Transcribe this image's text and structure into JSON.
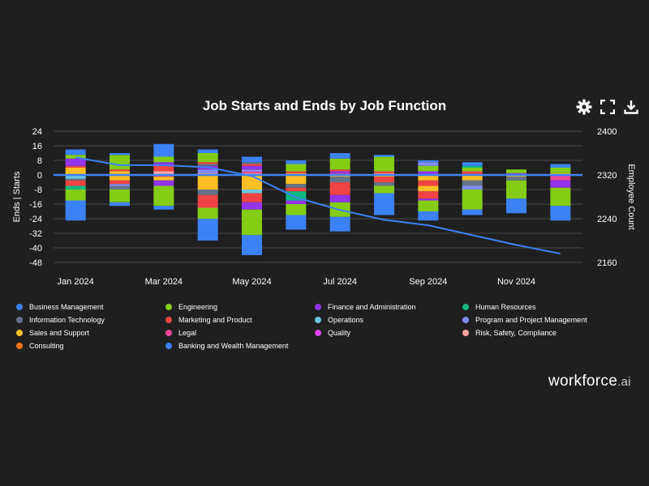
{
  "title": "Job Starts and Ends by Job Function",
  "toolbar": {
    "settings": "gear-icon",
    "expand": "expand-icon",
    "download": "download-icon"
  },
  "brand": {
    "name": "workforce",
    "suffix": ".ai"
  },
  "chart_data": {
    "type": "bar",
    "stacked": true,
    "title": "Job Starts and Ends by Job Function",
    "ylabel": "Ends | Starts",
    "y2label": "Employee Count",
    "ylim": [
      -48,
      24
    ],
    "yticks": [
      24,
      16,
      8,
      0,
      -8,
      -16,
      -24,
      -32,
      -40,
      -48
    ],
    "y2lim": [
      2160,
      2400
    ],
    "y2ticks": [
      2400,
      2320,
      2240,
      2160
    ],
    "months": [
      "Jan 2024",
      "Feb 2024",
      "Mar 2024",
      "Apr 2024",
      "May 2024",
      "Jun 2024",
      "Jul 2024",
      "Aug 2024",
      "Sep 2024",
      "Oct 2024",
      "Nov 2024",
      "Dec 2024"
    ],
    "xtick_labels": [
      "Jan 2024",
      "Mar 2024",
      "May 2024",
      "Jul 2024",
      "Sep 2024",
      "Nov 2024"
    ],
    "legend": [
      {
        "name": "Business Management",
        "color": "#3b82f6"
      },
      {
        "name": "Engineering",
        "color": "#84cc16"
      },
      {
        "name": "Finance and Administration",
        "color": "#9333ea"
      },
      {
        "name": "Human Resources",
        "color": "#10b981"
      },
      {
        "name": "Information Technology",
        "color": "#64748b"
      },
      {
        "name": "Marketing and Product",
        "color": "#ef4444"
      },
      {
        "name": "Operations",
        "color": "#67c8e0"
      },
      {
        "name": "Program and Project Management",
        "color": "#818cf8"
      },
      {
        "name": "Sales and Support",
        "color": "#fbbf24"
      },
      {
        "name": "Legal",
        "color": "#ec4899"
      },
      {
        "name": "Quality",
        "color": "#d946ef"
      },
      {
        "name": "Risk, Safety, Compliance",
        "color": "#fca5a5"
      },
      {
        "name": "Consulting",
        "color": "#f97316"
      },
      {
        "name": "Banking and Wealth Management",
        "color": "#3b82f6"
      }
    ],
    "starts": [
      [
        [
          "Sales and Support",
          4
        ],
        [
          "Marketing and Product",
          1
        ],
        [
          "Finance and Administration",
          4
        ],
        [
          "Engineering",
          2
        ],
        [
          "Business Management",
          3
        ]
      ],
      [
        [
          "Sales and Support",
          2
        ],
        [
          "Marketing and Product",
          1
        ],
        [
          "Engineering",
          8
        ],
        [
          "Business Management",
          1
        ]
      ],
      [
        [
          "Risk, Safety, Compliance",
          2
        ],
        [
          "Marketing and Product",
          3
        ],
        [
          "Finance and Administration",
          2
        ],
        [
          "Engineering",
          3
        ],
        [
          "Business Management",
          7
        ]
      ],
      [
        [
          "Risk, Safety, Compliance",
          1
        ],
        [
          "Program and Project Management",
          2
        ],
        [
          "Finance and Administration",
          2
        ],
        [
          "Information Technology",
          1
        ],
        [
          "Marketing and Product",
          1
        ],
        [
          "Engineering",
          5
        ],
        [
          "Business Management",
          2
        ]
      ],
      [
        [
          "Risk, Safety, Compliance",
          1
        ],
        [
          "Legal",
          1
        ],
        [
          "Program and Project Management",
          1
        ],
        [
          "Finance and Administration",
          2
        ],
        [
          "Marketing and Product",
          1
        ],
        [
          "Information Technology",
          1
        ],
        [
          "Business Management",
          3
        ]
      ],
      [
        [
          "Sales and Support",
          1
        ],
        [
          "Marketing and Product",
          1
        ],
        [
          "Engineering",
          4
        ],
        [
          "Business Management",
          2
        ]
      ],
      [
        [
          "Legal",
          1
        ],
        [
          "Finance and Administration",
          1
        ],
        [
          "Marketing and Product",
          1
        ],
        [
          "Engineering",
          6
        ],
        [
          "Business Management",
          3
        ]
      ],
      [
        [
          "Risk, Safety, Compliance",
          1
        ],
        [
          "Marketing and Product",
          1
        ],
        [
          "Engineering",
          8
        ],
        [
          "Business Management",
          1
        ]
      ],
      [
        [
          "Finance and Administration",
          2
        ],
        [
          "Engineering",
          3
        ],
        [
          "Program and Project Management",
          2
        ],
        [
          "Business Management",
          1
        ]
      ],
      [
        [
          "Marketing and Product",
          2
        ],
        [
          "Engineering",
          2
        ],
        [
          "Human Resources",
          1
        ],
        [
          "Business Management",
          2
        ]
      ],
      [
        [
          "Finance and Administration",
          1
        ],
        [
          "Engineering",
          2
        ]
      ],
      [
        [
          "Sales and Support",
          1
        ],
        [
          "Engineering",
          3
        ],
        [
          "Business Management",
          2
        ]
      ]
    ],
    "ends": [
      [
        [
          "Operations",
          2
        ],
        [
          "Information Technology",
          1
        ],
        [
          "Marketing and Product",
          3
        ],
        [
          "Human Resources",
          2
        ],
        [
          "Engineering",
          6
        ],
        [
          "Business Management",
          11
        ]
      ],
      [
        [
          "Sales and Support",
          3
        ],
        [
          "Marketing and Product",
          2
        ],
        [
          "Program and Project Management",
          1
        ],
        [
          "Information Technology",
          2
        ],
        [
          "Engineering",
          7
        ],
        [
          "Business Management",
          2
        ]
      ],
      [
        [
          "Legal",
          1
        ],
        [
          "Sales and Support",
          2
        ],
        [
          "Finance and Administration",
          3
        ],
        [
          "Engineering",
          11
        ],
        [
          "Business Management",
          2
        ]
      ],
      [
        [
          "Sales and Support",
          8
        ],
        [
          "Information Technology",
          3
        ],
        [
          "Marketing and Product",
          7
        ],
        [
          "Engineering",
          6
        ],
        [
          "Business Management",
          12
        ]
      ],
      [
        [
          "Sales and Support",
          8
        ],
        [
          "Operations",
          2
        ],
        [
          "Marketing and Product",
          5
        ],
        [
          "Finance and Administration",
          4
        ],
        [
          "Engineering",
          14
        ],
        [
          "Business Management",
          11
        ]
      ],
      [
        [
          "Sales and Support",
          5
        ],
        [
          "Information Technology",
          2
        ],
        [
          "Marketing and Product",
          2
        ],
        [
          "Human Resources",
          5
        ],
        [
          "Finance and Administration",
          2
        ],
        [
          "Engineering",
          6
        ],
        [
          "Business Management",
          8
        ]
      ],
      [
        [
          "Sales and Support",
          1
        ],
        [
          "Information Technology",
          3
        ],
        [
          "Marketing and Product",
          7
        ],
        [
          "Finance and Administration",
          4
        ],
        [
          "Engineering",
          8
        ],
        [
          "Business Management",
          8
        ]
      ],
      [
        [
          "Sales and Support",
          1
        ],
        [
          "Marketing and Product",
          3
        ],
        [
          "Information Technology",
          2
        ],
        [
          "Engineering",
          4
        ],
        [
          "Business Management",
          12
        ]
      ],
      [
        [
          "Sales and Support",
          3
        ],
        [
          "Marketing and Product",
          3
        ],
        [
          "Sales and Support",
          3
        ],
        [
          "Marketing and Product",
          4
        ],
        [
          "Finance and Administration",
          1
        ],
        [
          "Engineering",
          6
        ],
        [
          "Business Management",
          5
        ]
      ],
      [
        [
          "Sales and Support",
          3
        ],
        [
          "Information Technology",
          3
        ],
        [
          "Program and Project Management",
          2
        ],
        [
          "Engineering",
          11
        ],
        [
          "Business Management",
          3
        ]
      ],
      [
        [
          "Sales and Support",
          1
        ],
        [
          "Information Technology",
          2
        ],
        [
          "Engineering",
          10
        ],
        [
          "Business Management",
          8
        ]
      ],
      [
        [
          "Legal",
          3
        ],
        [
          "Finance and Administration",
          4
        ],
        [
          "Engineering",
          10
        ],
        [
          "Business Management",
          8
        ]
      ]
    ],
    "employee_count": [
      2352,
      2338,
      2338,
      2334,
      2318,
      2279,
      2256,
      2238,
      2228,
      2210,
      2192,
      2176
    ]
  }
}
